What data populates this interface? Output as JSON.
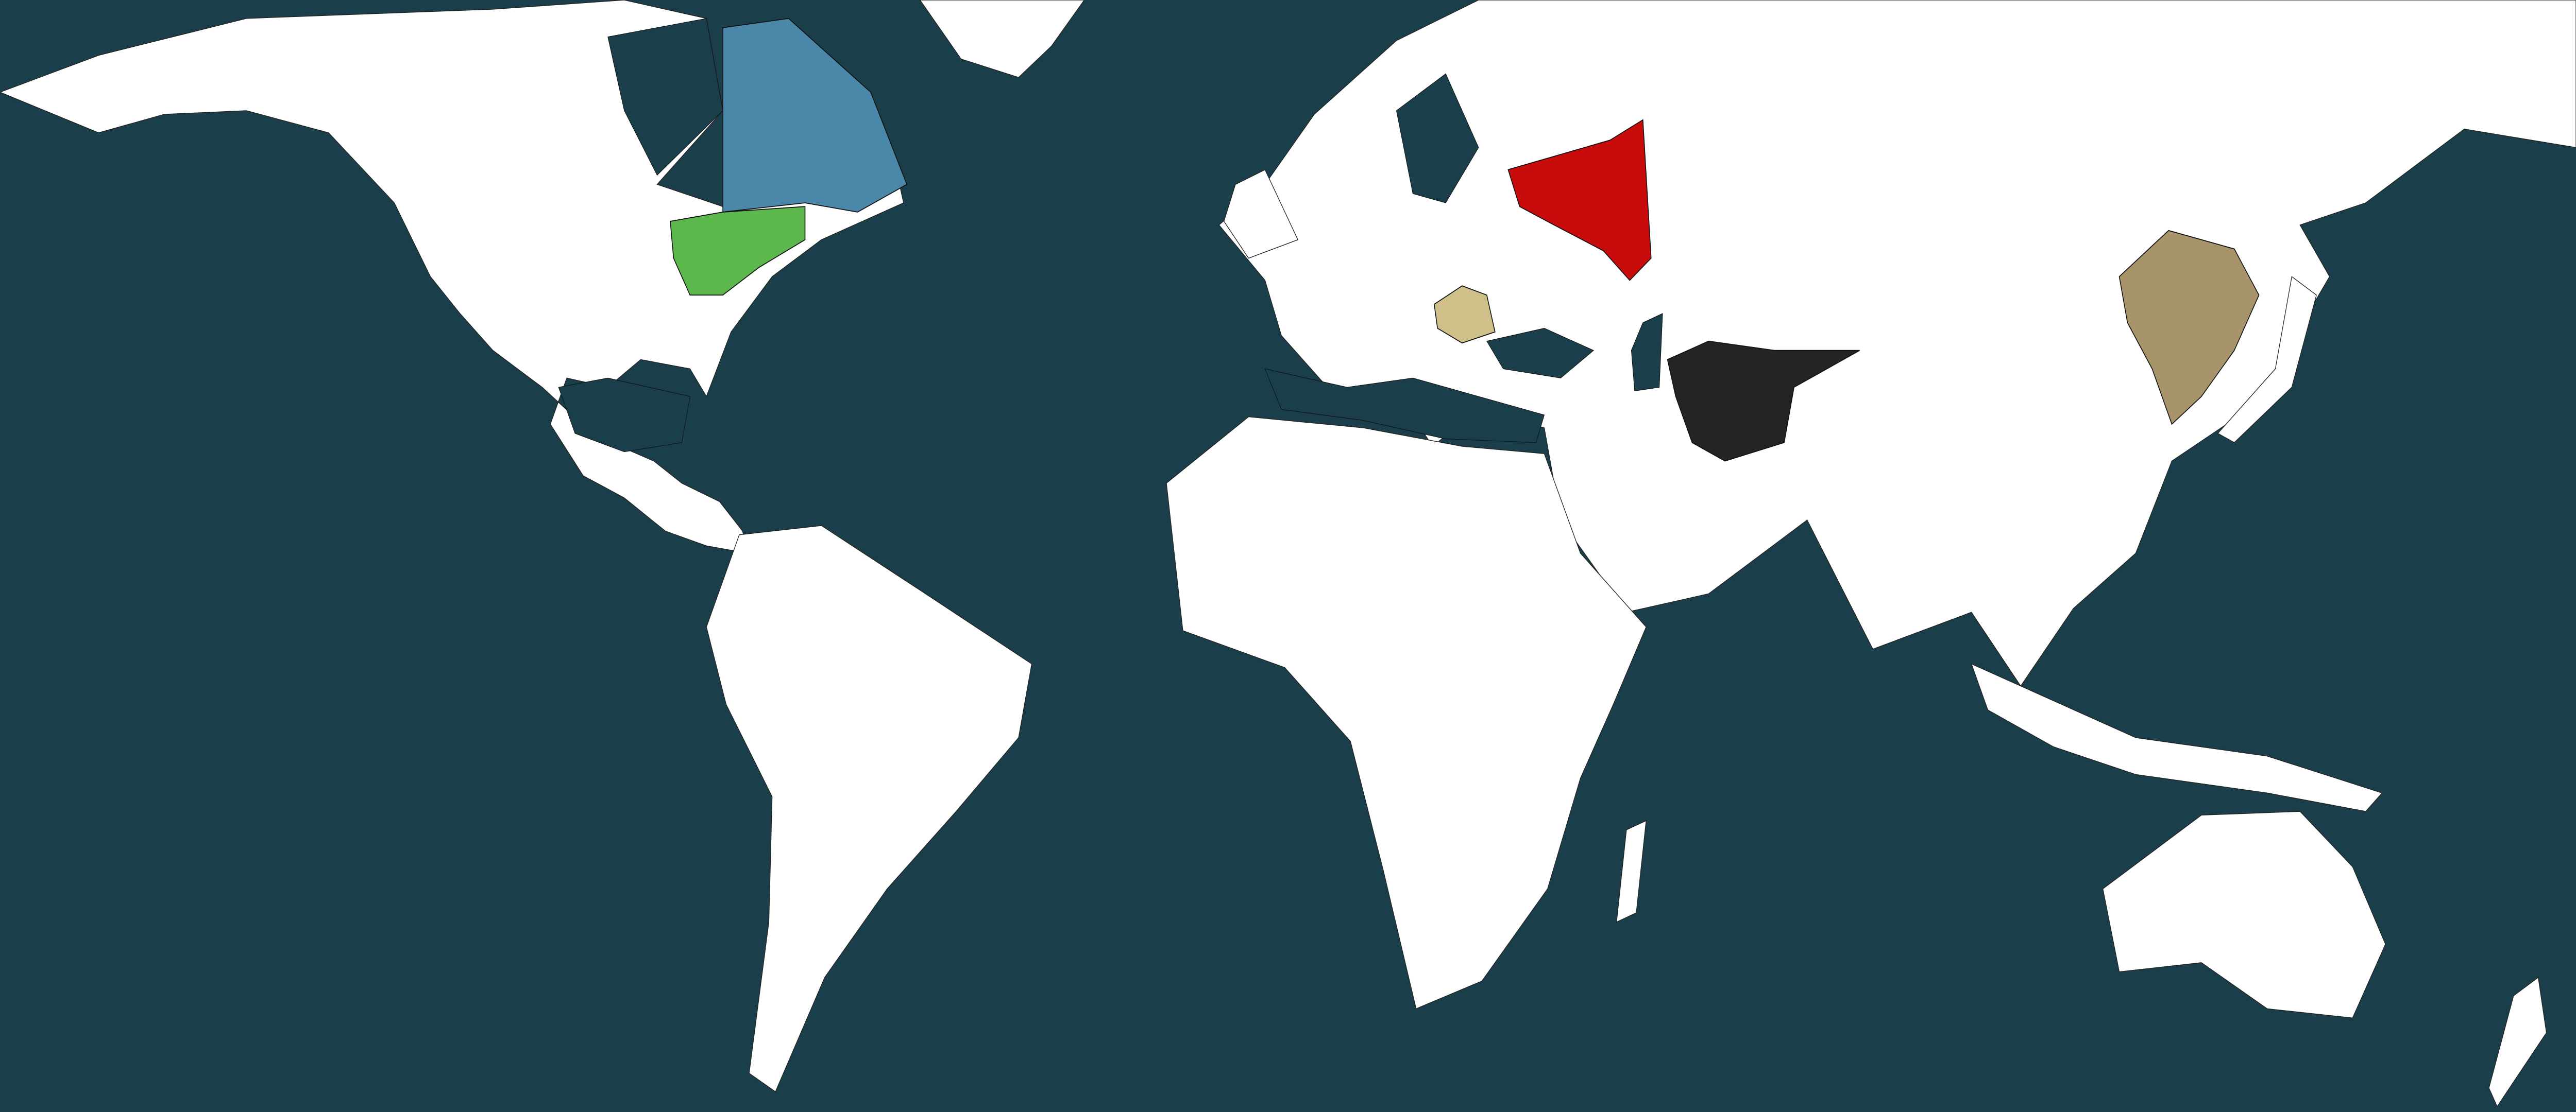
{
  "map": {
    "type": "world political map",
    "colors": {
      "ocean": "#1a3f4b",
      "land_unowned": "#ffffff",
      "border": "#222222",
      "region_blue": "#4a87a8",
      "region_green": "#5cb84c",
      "region_red": "#c80c0c",
      "region_pale_tan": "#cfc08a",
      "region_dark": "#222524",
      "region_khaki": "#a8946a"
    }
  }
}
